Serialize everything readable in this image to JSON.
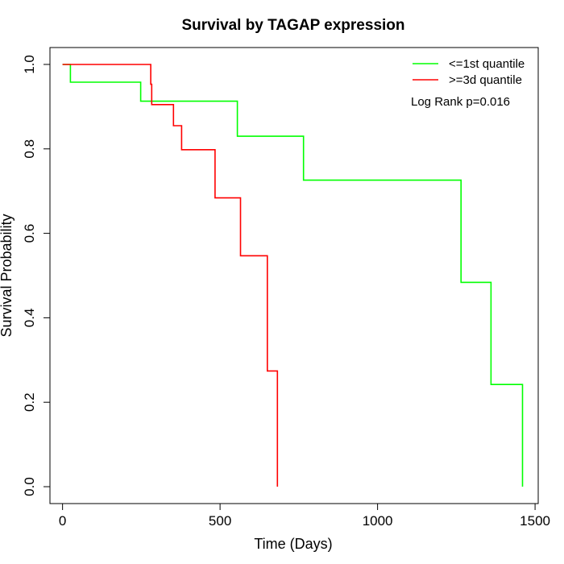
{
  "chart_data": {
    "type": "line",
    "title": "Survival by TAGAP expression",
    "xlabel": "Time (Days)",
    "ylabel": "Survival Probability",
    "xlim": [
      -40,
      1510
    ],
    "ylim": [
      -0.04,
      1.04
    ],
    "x_ticks": [
      0,
      500,
      1000,
      1500
    ],
    "y_ticks": [
      0.0,
      0.2,
      0.4,
      0.6,
      0.8,
      1.0
    ],
    "x_tick_labels": [
      "0",
      "500",
      "1000",
      "1500"
    ],
    "y_tick_labels": [
      "0.0",
      "0.2",
      "0.4",
      "0.6",
      "0.8",
      "1.0"
    ],
    "grid": false,
    "legend_position": "top-right",
    "annotation": "Log Rank p=0.016",
    "series": [
      {
        "name": "<=1st quantile",
        "color": "#00ff00",
        "steps": [
          [
            0,
            1.0
          ],
          [
            25,
            0.958
          ],
          [
            248,
            0.913
          ],
          [
            555,
            0.83
          ],
          [
            765,
            0.726
          ],
          [
            1265,
            0.484
          ],
          [
            1360,
            0.242
          ],
          [
            1460,
            0.0
          ]
        ]
      },
      {
        "name": ">=3d quantile",
        "color": "#ff0000",
        "steps": [
          [
            0,
            1.0
          ],
          [
            280,
            0.953
          ],
          [
            283,
            0.905
          ],
          [
            352,
            0.855
          ],
          [
            378,
            0.798
          ],
          [
            484,
            0.684
          ],
          [
            565,
            0.547
          ],
          [
            650,
            0.274
          ],
          [
            682,
            0.0
          ]
        ]
      }
    ]
  }
}
